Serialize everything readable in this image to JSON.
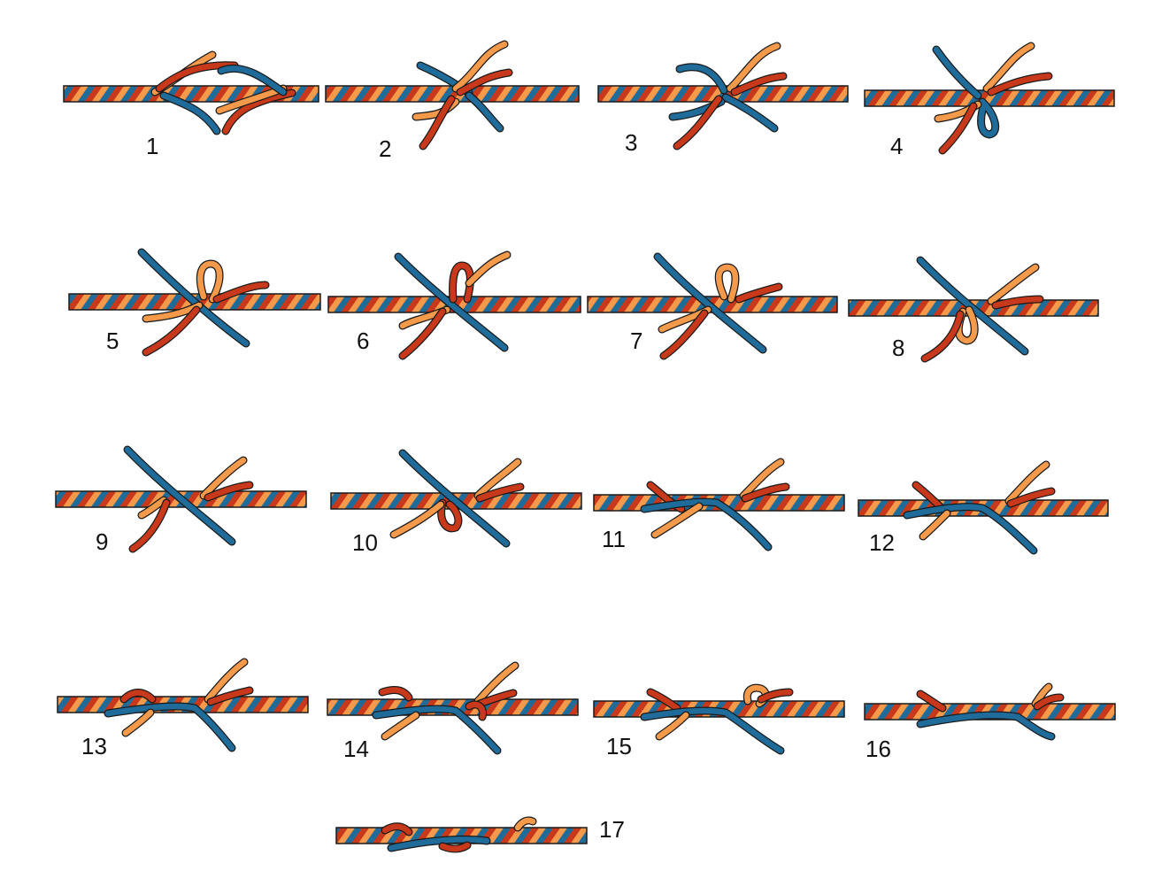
{
  "colors": {
    "strand_blue": "#1f6b9a",
    "strand_red": "#c8381a",
    "strand_orange": "#f59a4a",
    "outline": "#1a1a1a",
    "background": "#ffffff"
  },
  "steps": [
    {
      "label": "1"
    },
    {
      "label": "2"
    },
    {
      "label": "3"
    },
    {
      "label": "4"
    },
    {
      "label": "5"
    },
    {
      "label": "6"
    },
    {
      "label": "7"
    },
    {
      "label": "8"
    },
    {
      "label": "9"
    },
    {
      "label": "10"
    },
    {
      "label": "11"
    },
    {
      "label": "12"
    },
    {
      "label": "13"
    },
    {
      "label": "14"
    },
    {
      "label": "15"
    },
    {
      "label": "16"
    },
    {
      "label": "17"
    }
  ]
}
